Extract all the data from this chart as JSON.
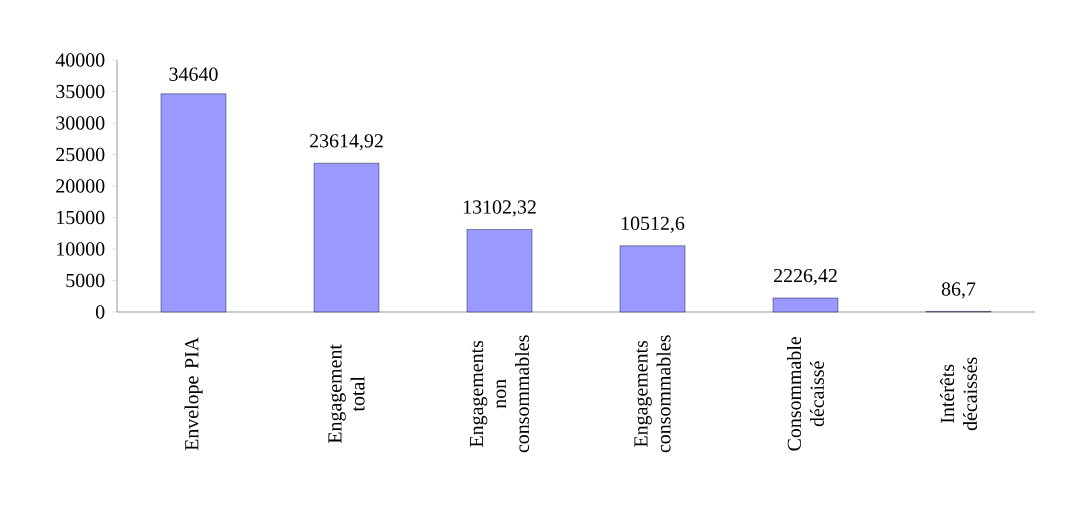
{
  "chart_data": {
    "type": "bar",
    "categories": [
      "Envelope PIA",
      "Engagement total",
      "Engagements non consommables",
      "Engagements consommables",
      "Consommable décaissé",
      "Intérêts décaissés"
    ],
    "values": [
      34640,
      23614.92,
      13102.32,
      10512.6,
      2226.42,
      86.7
    ],
    "value_labels": [
      "34640",
      "23614,92",
      "13102,32",
      "10512,6",
      "2226,42",
      "86,7"
    ],
    "color": "#9999ff",
    "ylim": [
      0,
      40000
    ],
    "yticks": [
      0,
      5000,
      10000,
      15000,
      20000,
      25000,
      30000,
      35000,
      40000
    ],
    "grid": false
  }
}
